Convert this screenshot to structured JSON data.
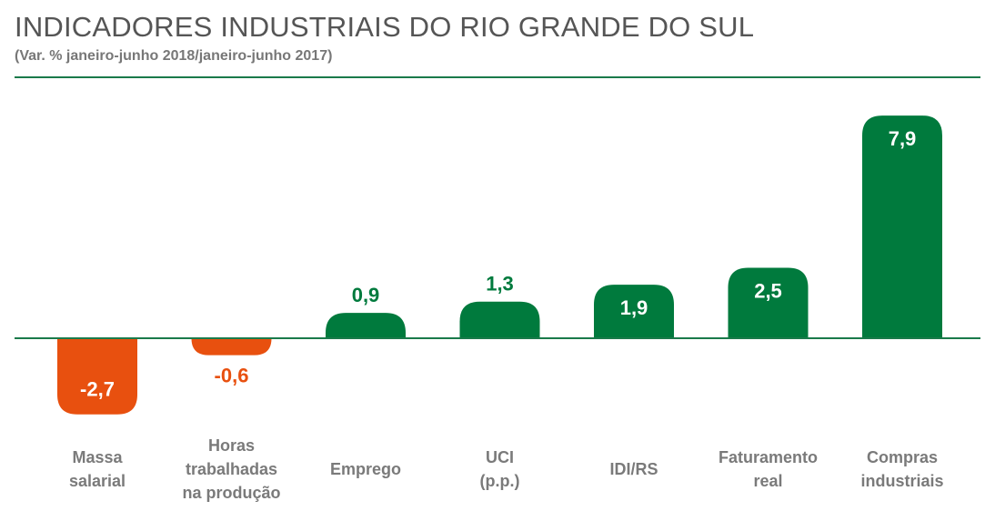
{
  "header": {
    "title": "INDICADORES INDUSTRIAIS DO RIO GRANDE DO SUL",
    "subtitle": "(Var. % janeiro-junho 2018/janeiro-junho 2017)"
  },
  "colors": {
    "positive": "#007a3d",
    "negative": "#e8500f",
    "axis": "#1a7a4a",
    "category_label": "#7a7a7a"
  },
  "chart_data": {
    "type": "bar",
    "title": "INDICADORES INDUSTRIAIS DO RIO GRANDE DO SUL",
    "subtitle": "(Var. % janeiro-junho 2018/janeiro-junho 2017)",
    "categories": [
      [
        "Massa",
        "salarial"
      ],
      [
        "Horas",
        "trabalhadas",
        "na produção"
      ],
      [
        "Emprego"
      ],
      [
        "UCI",
        "(p.p.)"
      ],
      [
        "IDI/RS"
      ],
      [
        "Faturamento",
        "real"
      ],
      [
        "Compras",
        "industriais"
      ]
    ],
    "values": [
      -2.7,
      -0.6,
      0.9,
      1.3,
      1.9,
      2.5,
      7.9
    ],
    "value_labels": [
      "-2,7",
      "-0,6",
      "0,9",
      "1,3",
      "1,9",
      "2,5",
      "7,9"
    ],
    "ylim": [
      -2.7,
      7.9
    ],
    "grid": false,
    "legend": "none"
  }
}
